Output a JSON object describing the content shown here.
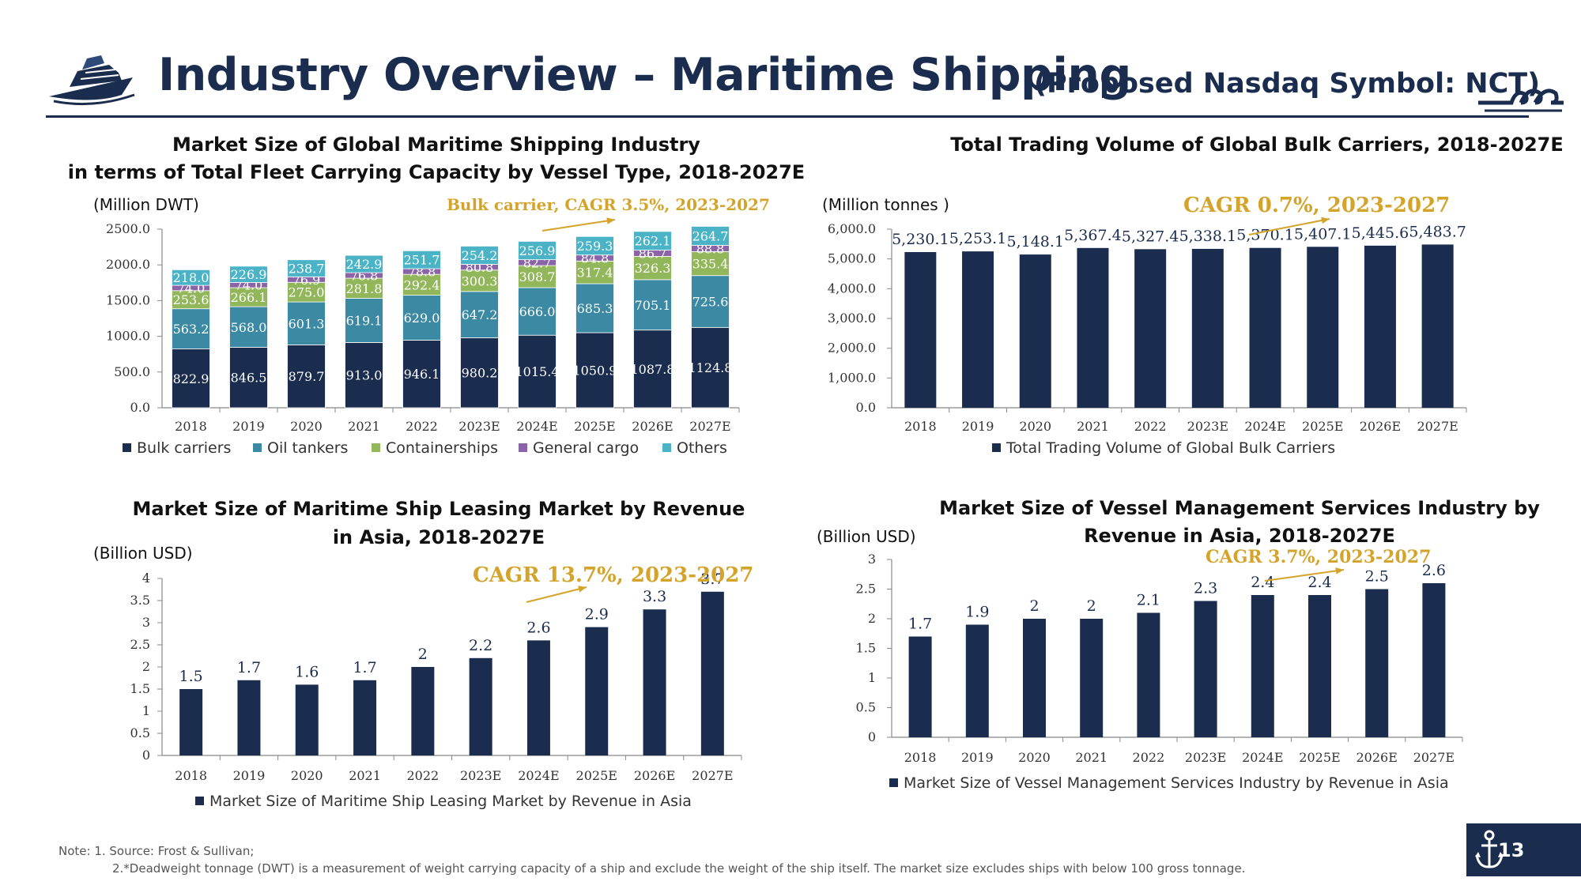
{
  "header": {
    "title": "Industry Overview – Maritime Shipping",
    "subtitle": "(Proposed Nasdaq Symbol:  NCT)",
    "logo_icon": "ship-icon",
    "decor_icon": "wave-icon"
  },
  "colors": {
    "navy": "#1b2d4f",
    "bulk": "#1b2d4f",
    "oil": "#3b89a3",
    "container": "#92b75b",
    "general": "#8a63a8",
    "others": "#4ab3c6",
    "accent": "#d4a32a"
  },
  "chart_data": [
    {
      "type": "bar",
      "stacked": true,
      "title": [
        "Market Size of Global Maritime Shipping Industry",
        "in terms of Total Fleet Carrying Capacity by Vessel Type, 2018-2027E"
      ],
      "ylabel": "(Million DWT)",
      "ylim": [
        0,
        2500
      ],
      "yticks": [
        "0.0",
        "500.0",
        "1000.0",
        "1500.0",
        "2000.0",
        "2500.0"
      ],
      "categories": [
        "2018",
        "2019",
        "2020",
        "2021",
        "2022",
        "2023E",
        "2024E",
        "2025E",
        "2026E",
        "2027E"
      ],
      "series": [
        {
          "name": "Bulk carriers",
          "values": [
            822.9,
            846.5,
            879.7,
            913.0,
            946.1,
            980.2,
            1015.4,
            1050.9,
            1087.8,
            1124.8
          ]
        },
        {
          "name": "Oil tankers",
          "values": [
            563.2,
            568.0,
            601.3,
            619.1,
            629.0,
            647.2,
            666.0,
            685.3,
            705.1,
            725.6
          ]
        },
        {
          "name": "Containerships",
          "values": [
            253.6,
            266.1,
            275.0,
            281.8,
            292.4,
            300.3,
            308.7,
            317.4,
            326.3,
            335.4
          ]
        },
        {
          "name": "General cargo",
          "values": [
            74.0,
            74.0,
            76.9,
            76.8,
            78.8,
            80.8,
            82.7,
            84.8,
            86.7,
            88.8
          ]
        },
        {
          "name": "Others",
          "values": [
            218.0,
            226.9,
            238.7,
            242.9,
            251.7,
            254.2,
            256.9,
            259.3,
            262.1,
            264.7
          ]
        }
      ],
      "labels": {
        "Bulk carriers": [
          "822.9",
          "846.5",
          "879.7",
          "913.0",
          "946.1",
          "980.2",
          "1015.4",
          "1050.9",
          "1087.8",
          "1124.8"
        ],
        "Oil tankers": [
          "563.2",
          "568.0",
          "601.3",
          "619.1",
          "629.0",
          "647.2",
          "666.0",
          "685.3",
          "705.1",
          "725.6"
        ],
        "Containerships": [
          "253.6",
          "266.1",
          "275.0",
          "281.8",
          "292.4",
          "300.3",
          "308.7",
          "317.4",
          "326.3",
          "335.4"
        ],
        "General cargo": [
          "74.0",
          "74.0",
          "76.9",
          "76.8",
          "78.8",
          "80.8",
          "82.7",
          "84.8",
          "86.7",
          "88.8"
        ],
        "Others": [
          "218.0",
          "226.9",
          "238.7",
          "242.9",
          "251.7",
          "254.2",
          "256.9",
          "259.3",
          "262.1",
          "264.7"
        ]
      },
      "annotation": "Bulk carrier, CAGR 3.5%, 2023-2027",
      "legend": "bottom"
    },
    {
      "type": "bar",
      "title": [
        "Total Trading Volume of Global Bulk Carriers, 2018-2027E"
      ],
      "ylabel": "(Million tonnes )",
      "ylim": [
        0,
        6000
      ],
      "yticks": [
        "0.0",
        "1,000.0",
        "2,000.0",
        "3,000.0",
        "4,000.0",
        "5,000.0",
        "6,000.0"
      ],
      "categories": [
        "2018",
        "2019",
        "2020",
        "2021",
        "2022",
        "2023E",
        "2024E",
        "2025E",
        "2026E",
        "2027E"
      ],
      "series": [
        {
          "name": "Total Trading Volume of Global Bulk Carriers",
          "values": [
            5230.1,
            5253.1,
            5148.1,
            5367.4,
            5327.4,
            5338.1,
            5370.1,
            5407.1,
            5445.6,
            5483.7
          ]
        }
      ],
      "labels": [
        "5,230.1",
        "5,253.1",
        "5,148.1",
        "5,367.4",
        "5,327.4",
        "5,338.1",
        "5,370.1",
        "5,407.1",
        "5,445.6",
        "5,483.7"
      ],
      "annotation": "CAGR 0.7%, 2023-2027",
      "legend": "bottom"
    },
    {
      "type": "bar",
      "title": [
        "Market Size of Maritime Ship Leasing Market by Revenue",
        "in Asia, 2018-2027E"
      ],
      "ylabel": "(Billion USD)",
      "ylim": [
        0,
        4
      ],
      "yticks": [
        "0",
        "0.5",
        "1",
        "1.5",
        "2",
        "2.5",
        "3",
        "3.5",
        "4"
      ],
      "categories": [
        "2018",
        "2019",
        "2020",
        "2021",
        "2022",
        "2023E",
        "2024E",
        "2025E",
        "2026E",
        "2027E"
      ],
      "series": [
        {
          "name": "Market Size of Maritime Ship Leasing Market by Revenue in Asia",
          "values": [
            1.5,
            1.7,
            1.6,
            1.7,
            2,
            2.2,
            2.6,
            2.9,
            3.3,
            3.7
          ]
        }
      ],
      "labels": [
        "1.5",
        "1.7",
        "1.6",
        "1.7",
        "2",
        "2.2",
        "2.6",
        "2.9",
        "3.3",
        "3.7"
      ],
      "annotation": "CAGR 13.7%, 2023-2027",
      "legend": "bottom"
    },
    {
      "type": "bar",
      "title": [
        "Market Size of Vessel Management Services Industry by",
        "Revenue in Asia, 2018-2027E"
      ],
      "ylabel": "(Billion USD)",
      "ylim": [
        0,
        3
      ],
      "yticks": [
        "0",
        "0.5",
        "1",
        "1.5",
        "2",
        "2.5",
        "3"
      ],
      "categories": [
        "2018",
        "2019",
        "2020",
        "2021",
        "2022",
        "2023E",
        "2024E",
        "2025E",
        "2026E",
        "2027E"
      ],
      "series": [
        {
          "name": "Market Size of Vessel Management Services Industry by Revenue in Asia",
          "values": [
            1.7,
            1.9,
            2,
            2,
            2.1,
            2.3,
            2.4,
            2.4,
            2.5,
            2.6
          ]
        }
      ],
      "labels": [
        "1.7",
        "1.9",
        "2",
        "2",
        "2.1",
        "2.3",
        "2.4",
        "2.4",
        "2.5",
        "2.6"
      ],
      "annotation": "CAGR 3.7%, 2023-2027",
      "legend": "bottom"
    }
  ],
  "notes": {
    "line1": "Note: 1. Source: Frost & Sullivan;",
    "line2": "2.*Deadweight tonnage (DWT) is a measurement of weight carrying capacity of a ship and exclude the weight of the ship itself. The market size excludes ships with below 100 gross tonnage."
  },
  "footer": {
    "page_number": "13",
    "badge_icon": "anchor-icon"
  }
}
